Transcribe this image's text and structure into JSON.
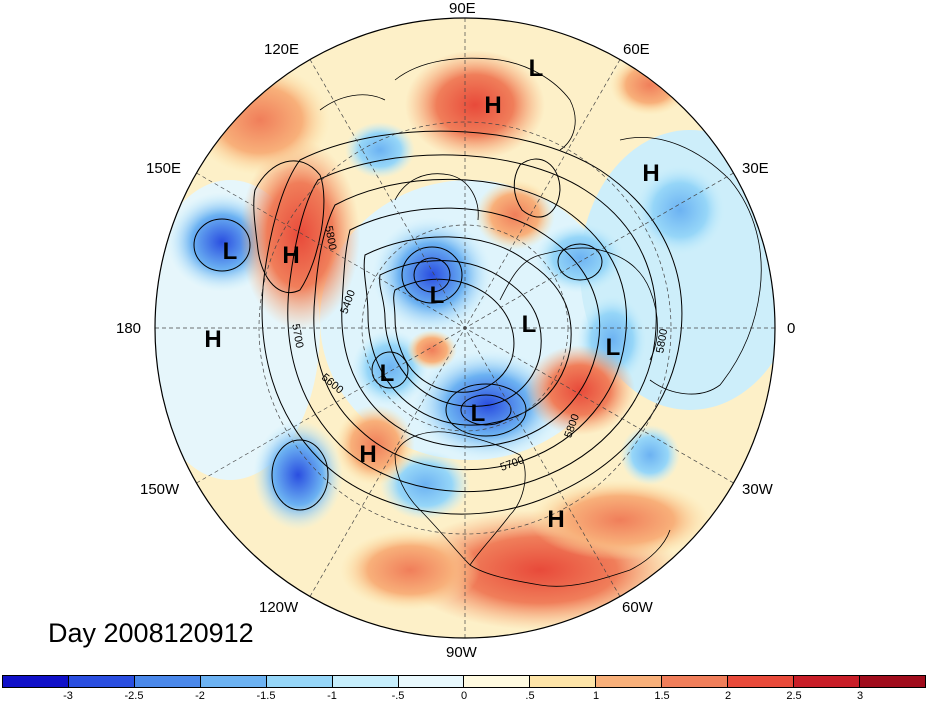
{
  "title": "Day 2008120912",
  "longitude_labels": {
    "e90": "90E",
    "e60": "60E",
    "e30": "30E",
    "e0": "0",
    "w30": "30W",
    "w60": "60W",
    "w90": "90W",
    "w120": "120W",
    "w150": "150W",
    "e180": "180",
    "e150": "150E",
    "e120": "120E"
  },
  "pressure_centers": [
    {
      "label": "L"
    },
    {
      "label": "H"
    },
    {
      "label": "H"
    },
    {
      "label": "L"
    },
    {
      "label": "H"
    },
    {
      "label": "H"
    },
    {
      "label": "L"
    },
    {
      "label": "L"
    },
    {
      "label": "L"
    },
    {
      "label": "L"
    },
    {
      "label": "L"
    },
    {
      "label": "H"
    },
    {
      "label": "H"
    }
  ],
  "contour_labels": {
    "c1": "5800",
    "c2": "5400",
    "c3": "5700",
    "c4": "5600",
    "c5": "5700",
    "c6": "5800",
    "c7": "5800"
  },
  "colorbar": {
    "colors": [
      "#1010c8",
      "#2a4ee0",
      "#4a88ea",
      "#6cb2f2",
      "#96d6f8",
      "#c6eefc",
      "#e8f8fd",
      "#fffae0",
      "#fde4a8",
      "#f8b07a",
      "#f07e5a",
      "#e84a3a",
      "#c81e28",
      "#a00c1c"
    ],
    "ticks": [
      "-3",
      "-2.5",
      "-2",
      "-1.5",
      "-1",
      "-.5",
      "0",
      ".5",
      "1",
      "1.5",
      "2",
      "2.5",
      "3"
    ]
  }
}
